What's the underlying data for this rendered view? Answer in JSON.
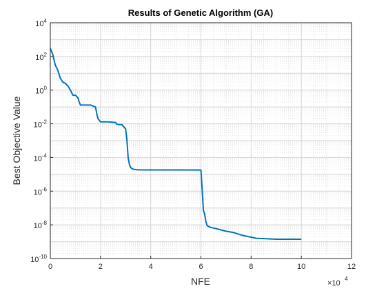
{
  "chart_data": {
    "type": "line",
    "title": "Results of Genetic Algorithm (GA)",
    "xlabel": "NFE",
    "ylabel": "Best Objective Value",
    "x_exponent_label": "×10",
    "x_exponent": "4",
    "xlim": [
      0,
      12
    ],
    "ylim_log10": [
      -10,
      4
    ],
    "yscale": "log",
    "grid": true,
    "minor_grid": true,
    "line_color": "#0072BD",
    "x_ticks": [
      {
        "value": 0,
        "label": "0"
      },
      {
        "value": 2,
        "label": "2"
      },
      {
        "value": 4,
        "label": "4"
      },
      {
        "value": 6,
        "label": "6"
      },
      {
        "value": 8,
        "label": "8"
      },
      {
        "value": 10,
        "label": "10"
      },
      {
        "value": 12,
        "label": "12"
      }
    ],
    "y_ticks": [
      {
        "exp": 4,
        "label": "10",
        "sup": "4"
      },
      {
        "exp": 2,
        "label": "10",
        "sup": "2"
      },
      {
        "exp": 0,
        "label": "10",
        "sup": "0"
      },
      {
        "exp": -2,
        "label": "10",
        "sup": "-2"
      },
      {
        "exp": -4,
        "label": "10",
        "sup": "-4"
      },
      {
        "exp": -6,
        "label": "10",
        "sup": "-6"
      },
      {
        "exp": -8,
        "label": "10",
        "sup": "-8"
      },
      {
        "exp": -10,
        "label": "10",
        "sup": "-10"
      }
    ],
    "series": [
      {
        "x": [
          0,
          0.05,
          0.1,
          0.15,
          0.2,
          0.3,
          0.4,
          0.5,
          0.6,
          0.7,
          0.8,
          0.9,
          1.0,
          1.1,
          1.15,
          1.2,
          1.25,
          1.4,
          1.6,
          1.8,
          1.85,
          1.9,
          2.0,
          2.1,
          2.3,
          2.6,
          2.65,
          2.75,
          2.85,
          3.0,
          3.05,
          3.1,
          3.15,
          3.2,
          3.3,
          3.5,
          4.0,
          5.0,
          6.0,
          6.05,
          6.1,
          6.12,
          6.15,
          6.2,
          6.25,
          6.3,
          6.4,
          6.6,
          6.8,
          7.0,
          7.3,
          7.6,
          7.9,
          8.2,
          8.6,
          9.0,
          9.5,
          10.0
        ],
        "y": [
          300,
          200,
          130,
          60,
          30,
          15,
          5,
          3,
          2.5,
          1.8,
          1.0,
          0.5,
          0.5,
          0.35,
          0.2,
          0.13,
          0.13,
          0.13,
          0.13,
          0.1,
          0.04,
          0.02,
          0.013,
          0.013,
          0.013,
          0.012,
          0.0095,
          0.009,
          0.009,
          0.005,
          0.0012,
          0.0001,
          4e-05,
          2.5e-05,
          2e-05,
          1.85e-05,
          1.82e-05,
          1.81e-05,
          1.8e-05,
          1.2e-06,
          7e-08,
          6e-08,
          4e-08,
          1.5e-08,
          9e-09,
          8e-09,
          7e-09,
          6e-09,
          5e-09,
          4.2e-09,
          3.5e-09,
          2.5e-09,
          2e-09,
          1.6e-09,
          1.5e-09,
          1.4e-09,
          1.4e-09,
          1.4e-09
        ]
      }
    ]
  }
}
